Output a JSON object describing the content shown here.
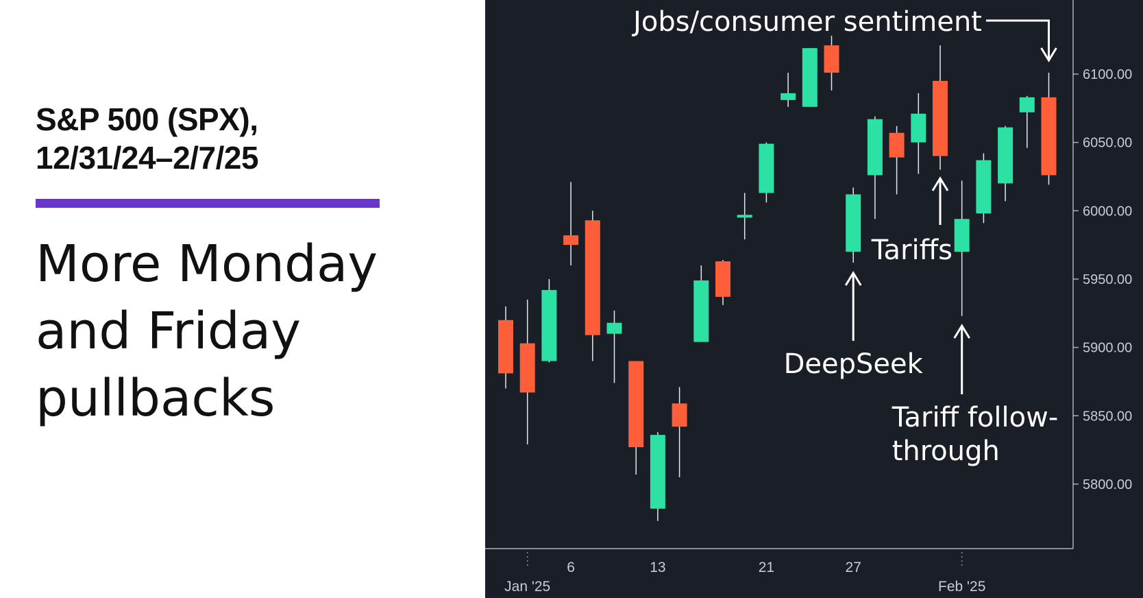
{
  "header": {
    "title_line1": "S&P 500 (SPX),",
    "title_line2": "12/31/24–2/7/25",
    "headline_line1": "More Monday",
    "headline_line2": "and Friday",
    "headline_line3": "pullbacks"
  },
  "colors": {
    "background": "#1a1e27",
    "up": "#2de0a4",
    "down": "#ff5e3a",
    "accent": "#6a35c9",
    "text": "#ffffff"
  },
  "chart_data": {
    "type": "candlestick",
    "title": "S&P 500 (SPX), 12/31/24–2/7/25",
    "ylim": [
      5750,
      6150
    ],
    "y_ticks": [
      5800,
      5850,
      5900,
      5950,
      6000,
      6050,
      6100
    ],
    "y_tick_labels": [
      "5800.00",
      "5850.00",
      "5900.00",
      "5950.00",
      "6000.00",
      "6050.00",
      "6100.00"
    ],
    "x_tick_labels": [
      {
        "label": "6",
        "index": 3
      },
      {
        "label": "13",
        "index": 7
      },
      {
        "label": "21",
        "index": 12
      },
      {
        "label": "27",
        "index": 16
      },
      {
        "label": "Jan '25",
        "index": 1
      },
      {
        "label": "Feb '25",
        "index": 21
      }
    ],
    "period_markers": [
      1,
      21
    ],
    "candles": [
      {
        "date": "12/31/24",
        "open": 5920,
        "high": 5930,
        "low": 5870,
        "close": 5881
      },
      {
        "date": "1/2/25",
        "open": 5903,
        "high": 5935,
        "low": 5829,
        "close": 5867
      },
      {
        "date": "1/3/25",
        "open": 5890,
        "high": 5950,
        "low": 5889,
        "close": 5942
      },
      {
        "date": "1/6/25",
        "open": 5982,
        "high": 6021,
        "low": 5960,
        "close": 5975
      },
      {
        "date": "1/7/25",
        "open": 5993,
        "high": 6000,
        "low": 5890,
        "close": 5909
      },
      {
        "date": "1/8/25",
        "open": 5910,
        "high": 5927,
        "low": 5874,
        "close": 5918
      },
      {
        "date": "1/10/25",
        "open": 5890,
        "high": 5890,
        "low": 5807,
        "close": 5827
      },
      {
        "date": "1/13/25",
        "open": 5782,
        "high": 5838,
        "low": 5773,
        "close": 5836
      },
      {
        "date": "1/14/25",
        "open": 5859,
        "high": 5871,
        "low": 5805,
        "close": 5842
      },
      {
        "date": "1/15/25",
        "open": 5904,
        "high": 5960,
        "low": 5904,
        "close": 5949
      },
      {
        "date": "1/16/25",
        "open": 5963,
        "high": 5964,
        "low": 5931,
        "close": 5937
      },
      {
        "date": "1/17/25",
        "open": 5995,
        "high": 6013,
        "low": 5979,
        "close": 5997
      },
      {
        "date": "1/21/25",
        "open": 6013,
        "high": 6050,
        "low": 6006,
        "close": 6049
      },
      {
        "date": "1/22/25",
        "open": 6081,
        "high": 6101,
        "low": 6076,
        "close": 6086
      },
      {
        "date": "1/23/25",
        "open": 6076,
        "high": 6119,
        "low": 6076,
        "close": 6119
      },
      {
        "date": "1/24/25",
        "open": 6121,
        "high": 6128,
        "low": 6088,
        "close": 6101
      },
      {
        "date": "1/27/25",
        "open": 5970,
        "high": 6017,
        "low": 5962,
        "close": 6012
      },
      {
        "date": "1/28/25",
        "open": 6026,
        "high": 6069,
        "low": 5994,
        "close": 6067
      },
      {
        "date": "1/29/25",
        "open": 6057,
        "high": 6062,
        "low": 6012,
        "close": 6039
      },
      {
        "date": "1/30/25",
        "open": 6050,
        "high": 6086,
        "low": 6027,
        "close": 6071
      },
      {
        "date": "1/31/25",
        "open": 6095,
        "high": 6121,
        "low": 6030,
        "close": 6040
      },
      {
        "date": "2/3/25",
        "open": 5970,
        "high": 6022,
        "low": 5923,
        "close": 5994
      },
      {
        "date": "2/4/25",
        "open": 5998,
        "high": 6042,
        "low": 5991,
        "close": 6037
      },
      {
        "date": "2/5/25",
        "open": 6020,
        "high": 6062,
        "low": 6007,
        "close": 6061
      },
      {
        "date": "2/6/25",
        "open": 6072,
        "high": 6084,
        "low": 6046,
        "close": 6083
      },
      {
        "date": "2/7/25",
        "open": 6083,
        "high": 6101,
        "low": 6019,
        "close": 6026
      }
    ],
    "annotations": [
      {
        "text": "DeepSeek",
        "candle_index": 16,
        "style": "arrow-up"
      },
      {
        "text": "Tariffs",
        "candle_index": 20,
        "style": "arrow-up"
      },
      {
        "text": "Tariff follow-",
        "text2": "through",
        "candle_index": 21,
        "style": "arrow-up"
      },
      {
        "text": "Jobs/consumer sentiment",
        "candle_index": 25,
        "style": "arrow-down"
      }
    ]
  }
}
